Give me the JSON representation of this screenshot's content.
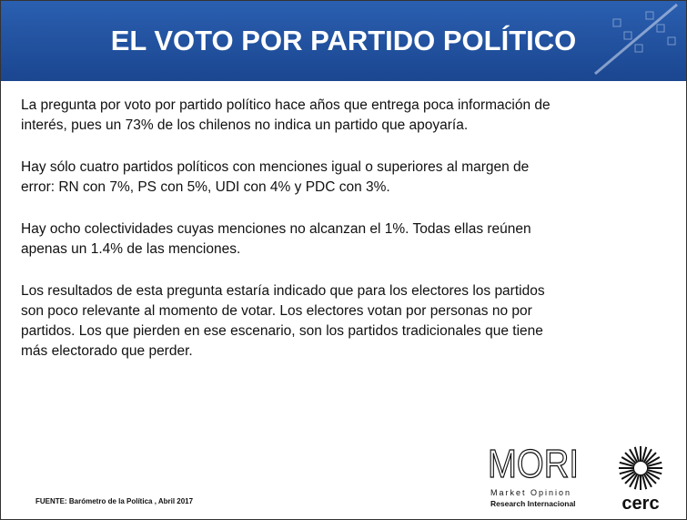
{
  "header": {
    "title": "EL VOTO POR PARTIDO POLÍTICO"
  },
  "paragraphs": [
    [
      "La pregunta por voto por partido político hace años que entrega poca información de",
      "interés, pues un 73% de los chilenos no indica un partido que apoyaría."
    ],
    [
      "Hay sólo cuatro partidos políticos con menciones igual o superiores al margen de",
      "error: RN con 7%, PS con 5%, UDI con 4% y PDC con 3%."
    ],
    [
      "Hay ocho colectividades cuyas menciones no alcanzan el 1%. Todas ellas reúnen",
      "apenas un 1.4% de las menciones."
    ],
    [
      "Los resultados de esta pregunta estaría indicado que para los electores los partidos",
      "son poco relevante al momento de votar. Los electores votan por personas no por",
      "partidos. Los que pierden en ese escenario, son los partidos tradicionales que tiene",
      "más electorado que perder."
    ]
  ],
  "footer": {
    "source": "FUENTE: Barómetro de la Política , Abril 2017"
  },
  "logos": {
    "mori": "MORI",
    "mori_line1": "Market Opinion",
    "mori_line2": "Research Internacional",
    "cerc": "cerc"
  }
}
